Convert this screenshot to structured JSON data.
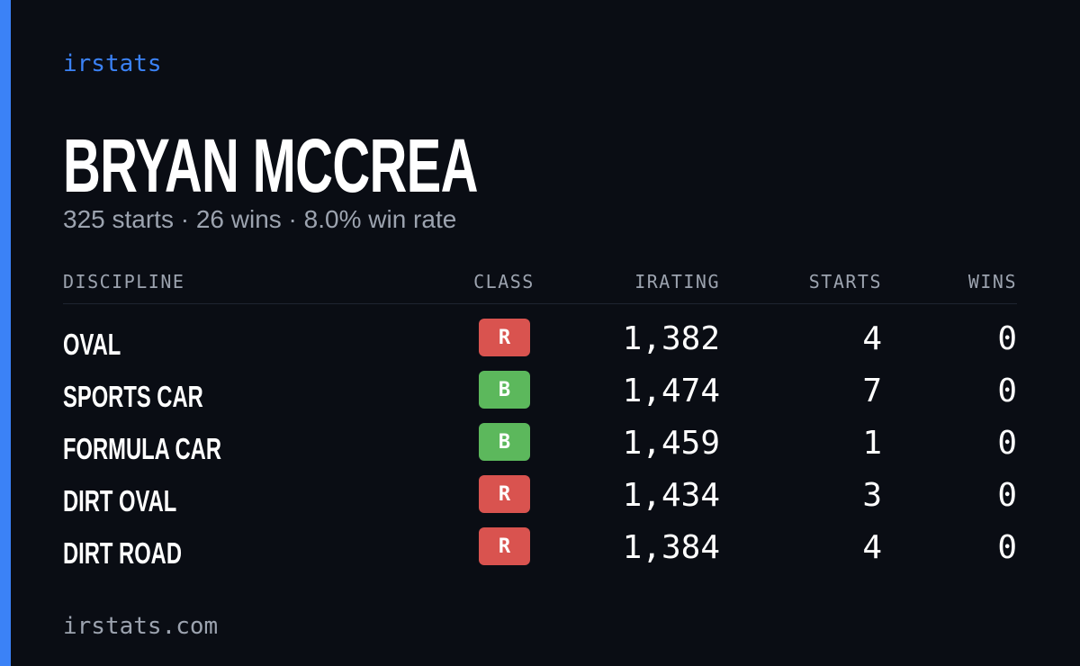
{
  "header": {
    "brand": "irstats",
    "name": "BRYAN MCCREA",
    "summary": "325 starts · 26 wins · 8.0% win rate"
  },
  "table": {
    "columns": [
      "DISCIPLINE",
      "CLASS",
      "IRATING",
      "STARTS",
      "WINS"
    ],
    "rows": [
      {
        "discipline": "OVAL",
        "class": "R",
        "class_color": "#d9534f",
        "irating": "1,382",
        "starts": "4",
        "wins": "0"
      },
      {
        "discipline": "SPORTS CAR",
        "class": "B",
        "class_color": "#5cb85c",
        "irating": "1,474",
        "starts": "7",
        "wins": "0"
      },
      {
        "discipline": "FORMULA CAR",
        "class": "B",
        "class_color": "#5cb85c",
        "irating": "1,459",
        "starts": "1",
        "wins": "0"
      },
      {
        "discipline": "DIRT OVAL",
        "class": "R",
        "class_color": "#d9534f",
        "irating": "1,434",
        "starts": "3",
        "wins": "0"
      },
      {
        "discipline": "DIRT ROAD",
        "class": "R",
        "class_color": "#d9534f",
        "irating": "1,384",
        "starts": "4",
        "wins": "0"
      }
    ]
  },
  "footer": {
    "url": "irstats.com"
  }
}
